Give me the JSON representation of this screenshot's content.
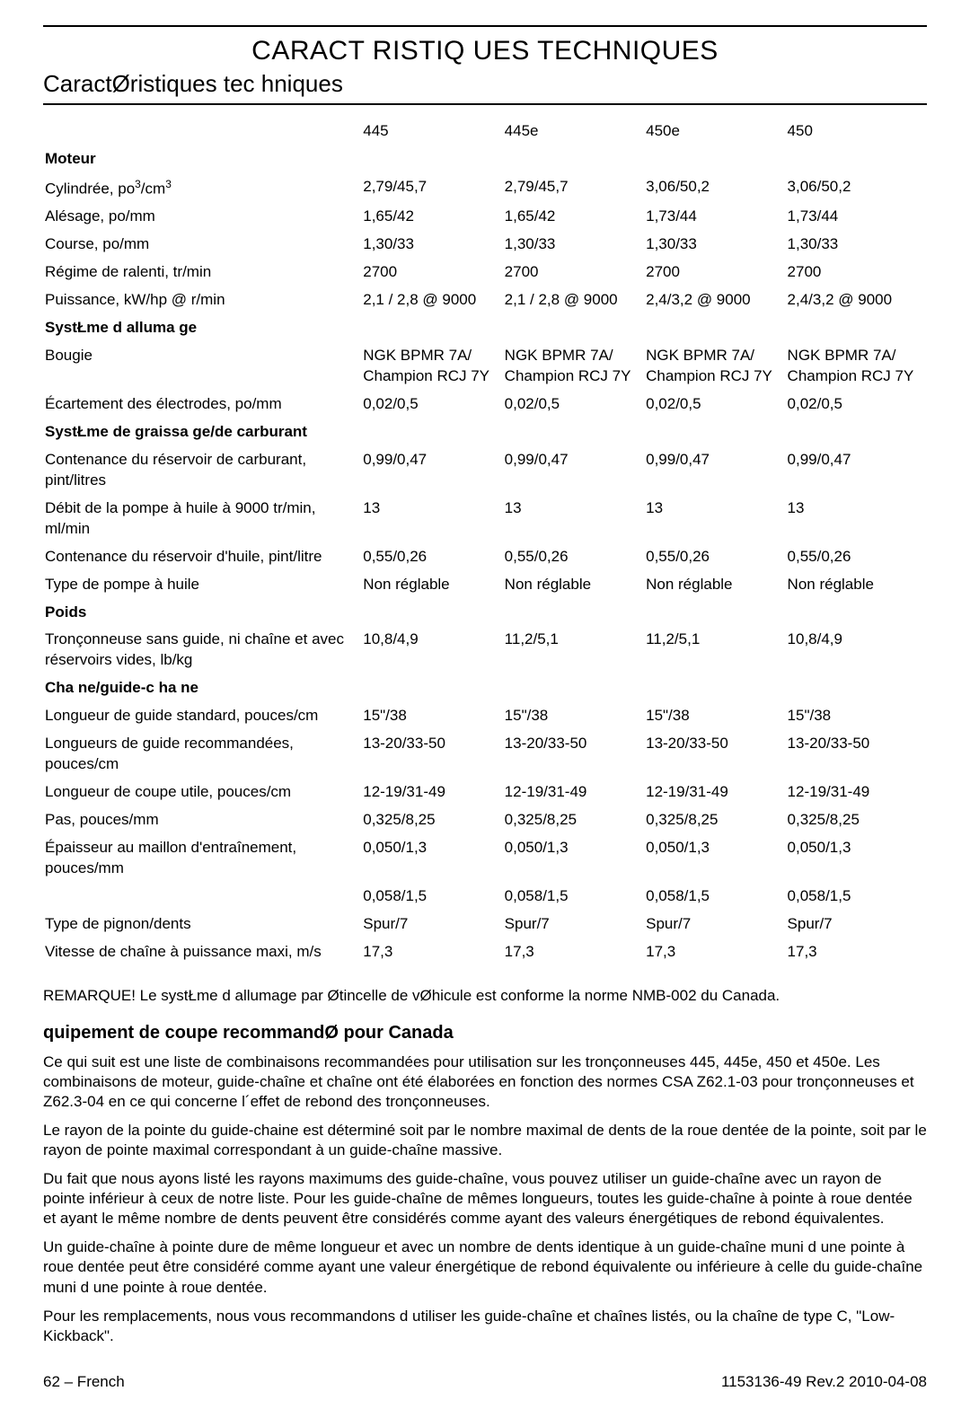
{
  "page_title": "CARACT RISTIQ UES TECHNIQUES",
  "section_title": "CaractØristiques tec hniques",
  "columns": {
    "c1": "445",
    "c2": "445e",
    "c3": "450e",
    "c4": "450"
  },
  "groups": {
    "moteur": "Moteur",
    "allumage": "SystŁme d alluma ge",
    "graissage": "SystŁme de graissa ge/de carburant",
    "poids": "Poids",
    "chaine": "Cha ne/guide-c ha ne"
  },
  "rows": {
    "cylindree": {
      "label_pre": "Cylindrée, po",
      "label_post": "/cm",
      "c1": "2,79/45,7",
      "c2": "2,79/45,7",
      "c3": "3,06/50,2",
      "c4": "3,06/50,2"
    },
    "alesage": {
      "label": "Alésage, po/mm",
      "c1": "1,65/42",
      "c2": "1,65/42",
      "c3": "1,73/44",
      "c4": "1,73/44"
    },
    "course": {
      "label": "Course, po/mm",
      "c1": "1,30/33",
      "c2": "1,30/33",
      "c3": "1,30/33",
      "c4": "1,30/33"
    },
    "ralenti": {
      "label": "Régime de ralenti, tr/min",
      "c1": "2700",
      "c2": "2700",
      "c3": "2700",
      "c4": "2700"
    },
    "puissance": {
      "label": "Puissance, kW/hp @ r/min",
      "c1": "2,1 / 2,8 @ 9000",
      "c2": "2,1 / 2,8 @ 9000",
      "c3": "2,4/3,2 @ 9000",
      "c4": "2,4/3,2 @ 9000"
    },
    "bougie": {
      "label": "Bougie",
      "c1": "NGK BPMR 7A/ Champion RCJ 7Y",
      "c2": "NGK BPMR 7A/ Champion RCJ 7Y",
      "c3": "NGK BPMR 7A/ Champion RCJ 7Y",
      "c4": "NGK BPMR 7A/ Champion RCJ 7Y"
    },
    "ecart": {
      "label": "Écartement des électrodes, po/mm",
      "c1": "0,02/0,5",
      "c2": "0,02/0,5",
      "c3": "0,02/0,5",
      "c4": "0,02/0,5"
    },
    "reservoir": {
      "label": "Contenance du réservoir de carburant, pint/litres",
      "c1": "0,99/0,47",
      "c2": "0,99/0,47",
      "c3": "0,99/0,47",
      "c4": "0,99/0,47"
    },
    "pompe": {
      "label": "Débit de la pompe à huile à 9000 tr/min, ml/min",
      "c1": "13",
      "c2": "13",
      "c3": "13",
      "c4": "13"
    },
    "reshuile": {
      "label": "Contenance du réservoir d'huile, pint/litre",
      "c1": "0,55/0,26",
      "c2": "0,55/0,26",
      "c3": "0,55/0,26",
      "c4": "0,55/0,26"
    },
    "typepompe": {
      "label": "Type de pompe à huile",
      "c1": "Non réglable",
      "c2": "Non réglable",
      "c3": "Non réglable",
      "c4": "Non réglable"
    },
    "tronc": {
      "label": "Tronçonneuse sans guide, ni chaîne et avec réservoirs vides, lb/kg",
      "c1": "10,8/4,9",
      "c2": "11,2/5,1",
      "c3": "11,2/5,1",
      "c4": "10,8/4,9"
    },
    "lgstd": {
      "label": "Longueur de guide standard, pouces/cm",
      "c1": "15\"/38",
      "c2": "15\"/38",
      "c3": "15\"/38",
      "c4": "15\"/38"
    },
    "lgrec": {
      "label": "Longueurs de guide recommandées, pouces/cm",
      "c1": "13-20/33-50",
      "c2": "13-20/33-50",
      "c3": "13-20/33-50",
      "c4": "13-20/33-50"
    },
    "lgcoupe": {
      "label": "Longueur de coupe utile, pouces/cm",
      "c1": "12-19/31-49",
      "c2": "12-19/31-49",
      "c3": "12-19/31-49",
      "c4": "12-19/31-49"
    },
    "pas": {
      "label": "Pas, pouces/mm",
      "c1": "0,325/8,25",
      "c2": "0,325/8,25",
      "c3": "0,325/8,25",
      "c4": "0,325/8,25"
    },
    "epais": {
      "label": "Épaisseur au maillon d'entraînement, pouces/mm",
      "c1": "0,050/1,3",
      "c2": "0,050/1,3",
      "c3": "0,050/1,3",
      "c4": "0,050/1,3"
    },
    "epais2": {
      "label": "",
      "c1": "0,058/1,5",
      "c2": "0,058/1,5",
      "c3": "0,058/1,5",
      "c4": "0,058/1,5"
    },
    "pignon": {
      "label": "Type de pignon/dents",
      "c1": "Spur/7",
      "c2": "Spur/7",
      "c3": "Spur/7",
      "c4": "Spur/7"
    },
    "vitesse": {
      "label": "Vitesse de chaîne à puissance maxi, m/s",
      "c1": "17,3",
      "c2": "17,3",
      "c3": "17,3",
      "c4": "17,3"
    }
  },
  "note": "REMARQUE! Le systŁme d allumage par Øtincelle de vØhicule est conforme   la norme NMB-002 du Canada.",
  "sub_title": " quipement de coupe recommandØ pour Canada",
  "paras": {
    "p1": "Ce qui suit est une liste de combinaisons recommandées pour utilisation sur les tronçonneuses 445, 445e, 450 et 450e. Les combinaisons de moteur, guide-chaîne et chaîne ont été élaborées en fonction des normes CSA Z62.1-03 pour tronçonneuses et Z62.3-04 en ce qui concerne l´effet de rebond des tronçonneuses.",
    "p2": "Le rayon de la pointe du guide-chaine est déterminé soit par le nombre maximal de dents de la roue dentée de la pointe, soit par le rayon de pointe maximal correspondant à un guide-chaîne massive.",
    "p3": "Du fait que nous ayons listé les rayons maximums des guide-chaîne, vous pouvez utiliser un guide-chaîne avec un rayon de pointe inférieur à ceux de notre liste. Pour les guide-chaîne de mêmes longueurs, toutes les guide-chaîne à pointe à roue dentée et ayant le même nombre de dents peuvent être considérés comme ayant des valeurs énergétiques de rebond équivalentes.",
    "p4": "Un guide-chaîne à pointe dure de même longueur et avec un nombre de dents identique à un guide-chaîne muni d une pointe à roue dentée peut être considéré comme ayant une valeur énergétique de rebond équivalente ou inférieure à celle du guide-chaîne muni d une pointe à roue dentée.",
    "p5": "Pour les remplacements, nous vous recommandons d utiliser les guide-chaîne et chaînes listés, ou la chaîne de type C, \"Low-Kickback\"."
  },
  "footer": {
    "left": "62 – French",
    "right": "1153136-49 Rev.2 2010-04-08"
  }
}
